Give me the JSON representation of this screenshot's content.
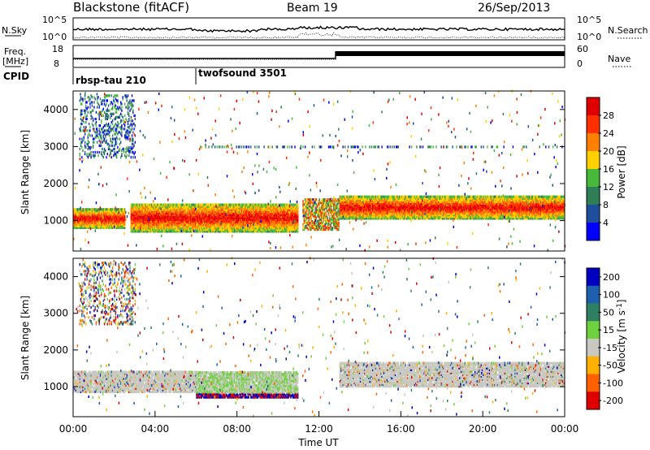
{
  "header": {
    "station": "Blackstone (fitACF)",
    "beam": "Beam 19",
    "date": "26/Sep/2013"
  },
  "top_panel": {
    "left_label": "N.Sky",
    "right_label": "N.Search",
    "left_ticks": [
      "10^5",
      "10^0"
    ],
    "right_ticks": [
      "10^5",
      "10^0"
    ]
  },
  "freq_panel": {
    "left_label_1": "Freq.",
    "left_label_2": "[MHz]",
    "right_label": "Nave",
    "left_ticks": [
      "18",
      "8"
    ],
    "right_ticks": [
      "60",
      "0"
    ]
  },
  "cpid_panel": {
    "label": "CPID",
    "modes": [
      {
        "name": "rbsp-tau 210",
        "start_hour": 0
      },
      {
        "name": "twofsound 3501",
        "start_hour": 6
      }
    ]
  },
  "chart_data": [
    {
      "type": "heatmap",
      "panel": "power",
      "ylabel": "Slant Range [km]",
      "yticks": [
        "1000",
        "2000",
        "3000",
        "4000"
      ],
      "ylim": [
        180,
        4500
      ],
      "xlim": [
        0,
        24
      ],
      "colorbar_label": "Power [dB]",
      "colorbar_ticks": [
        "4",
        "8",
        "12",
        "16",
        "20",
        "24",
        "28"
      ],
      "colorbar_colors": [
        "#0000ff",
        "#1f4e9c",
        "#2f7e55",
        "#49b93c",
        "#ffd000",
        "#ff8000",
        "#ff3000",
        "#e00000"
      ],
      "features": [
        {
          "hours": [
            0,
            2.5
          ],
          "range_km": [
            800,
            1300
          ],
          "level": "strong"
        },
        {
          "hours": [
            2.8,
            11.0
          ],
          "range_km": [
            700,
            1450
          ],
          "level": "strong"
        },
        {
          "hours": [
            11.2,
            13.0
          ],
          "range_km": [
            750,
            1600
          ],
          "level": "moderate"
        },
        {
          "hours": [
            13.0,
            24.0
          ],
          "range_km": [
            1050,
            1650
          ],
          "level": "strong"
        },
        {
          "hours": [
            0.3,
            3.0
          ],
          "range_km": [
            2700,
            4400
          ],
          "level": "scattered"
        },
        {
          "hours": [
            6.0,
            24.0
          ],
          "range_km": [
            2980,
            3020
          ],
          "level": "weak"
        }
      ]
    },
    {
      "type": "heatmap",
      "panel": "velocity",
      "ylabel": "Slant Range [km]",
      "yticks": [
        "1000",
        "2000",
        "3000",
        "4000"
      ],
      "ylim": [
        180,
        4500
      ],
      "xlim": [
        0,
        24
      ],
      "xlabel": "Time UT",
      "xticks": [
        "00:00",
        "04:00",
        "08:00",
        "12:00",
        "16:00",
        "20:00",
        "00:00"
      ],
      "colorbar_label": "Velocity [m s",
      "colorbar_label_sup": "-1",
      "colorbar_label_end": "]",
      "colorbar_ticks": [
        "200",
        "100",
        "50",
        "15",
        "-15",
        "-50",
        "-100",
        "-200"
      ],
      "colorbar_colors": [
        "#0000c0",
        "#1f5fb0",
        "#2f8060",
        "#6fd040",
        "#c8c8c0",
        "#ffb000",
        "#ff6000",
        "#e00000"
      ],
      "features": [
        {
          "hours": [
            0,
            6.0
          ],
          "range_km": [
            850,
            1400
          ],
          "level": "ground-scatter"
        },
        {
          "hours": [
            6.0,
            11.0
          ],
          "range_km": [
            700,
            1400
          ],
          "level": "mixed"
        },
        {
          "hours": [
            13.0,
            24.0
          ],
          "range_km": [
            1000,
            1650
          ],
          "level": "ground-scatter"
        },
        {
          "hours": [
            0.3,
            3.0
          ],
          "range_km": [
            2700,
            4400
          ],
          "level": "scattered"
        }
      ]
    }
  ]
}
